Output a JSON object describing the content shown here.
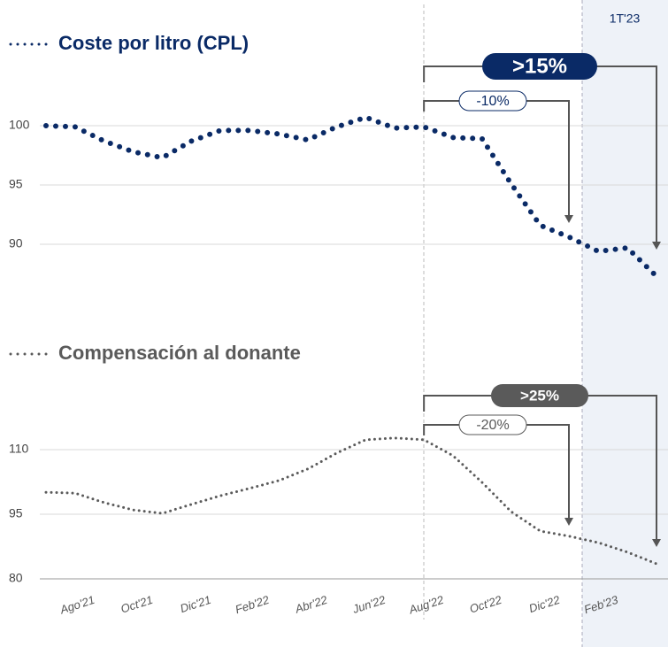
{
  "period_label": "1T'23",
  "chart_data": [
    {
      "type": "line",
      "title": "Coste por litro (CPL)",
      "color": "#0a2a66",
      "values": [
        100,
        99.9,
        98.7,
        97.8,
        97.3,
        98.7,
        99.6,
        99.6,
        99.3,
        98.8,
        99.9,
        100.7,
        99.8,
        99.9,
        99.0,
        98.9,
        95.1,
        91.6,
        90.6,
        89.4,
        89.7,
        87.3
      ],
      "ylim": [
        87,
        101
      ],
      "yticks": [
        90,
        95,
        100
      ],
      "grid": true,
      "annotations": [
        {
          "text": "-10%"
        },
        {
          "text": ">15%"
        }
      ]
    },
    {
      "type": "line",
      "title": "Compensación al donante",
      "color": "#5a5a5a",
      "categories": [
        null,
        "Ago'21",
        null,
        "Oct'21",
        null,
        "Dic'21",
        null,
        "Feb'22",
        null,
        "Abr'22",
        null,
        "Jun'22",
        null,
        "Aug'22",
        null,
        "Oct'22",
        null,
        "Dic'22",
        null,
        "Feb'23",
        null,
        null
      ],
      "values": [
        100.1,
        99.9,
        97.7,
        96.0,
        95.2,
        97.3,
        99.3,
        101.0,
        102.8,
        105.5,
        109.2,
        112.3,
        112.7,
        112.3,
        108.6,
        102.4,
        95.6,
        91.1,
        89.9,
        88.4,
        86.2,
        83.5
      ],
      "ylim": [
        80,
        115
      ],
      "yticks": [
        80,
        95,
        110
      ],
      "grid": true,
      "annotations": [
        {
          "text": "-20%"
        },
        {
          "text": ">25%"
        }
      ]
    }
  ]
}
